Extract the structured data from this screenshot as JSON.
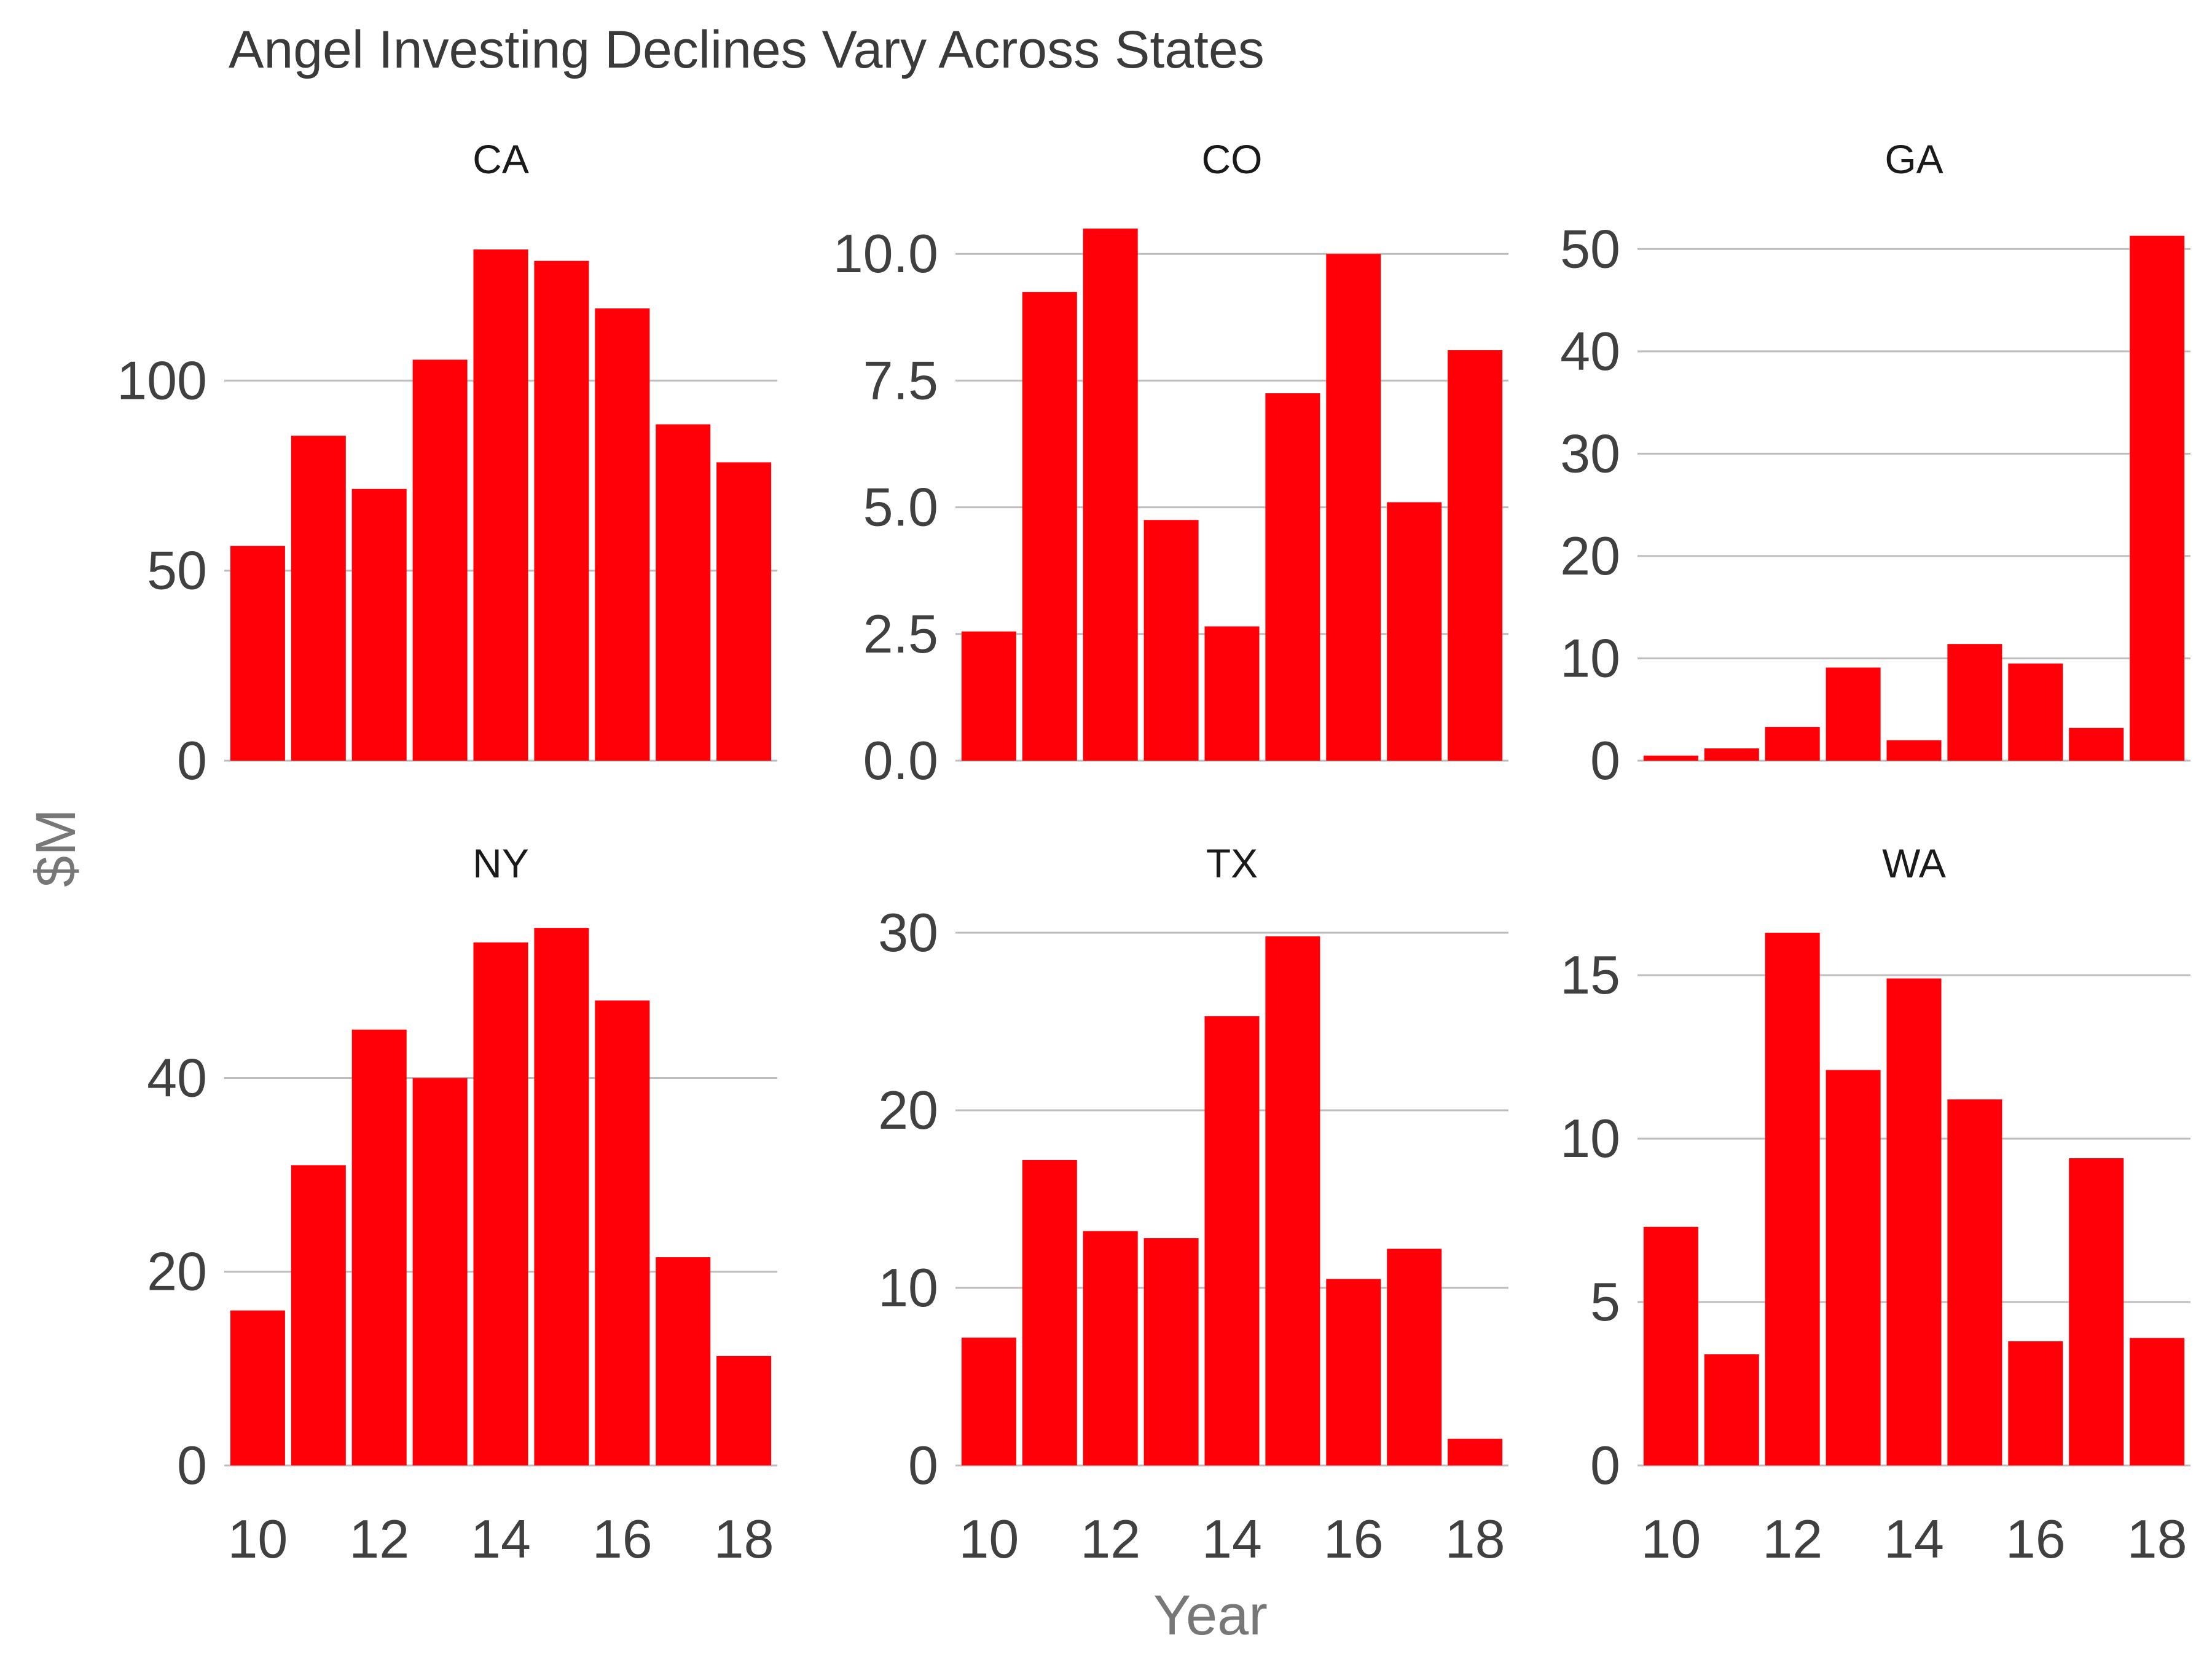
{
  "chart_data": {
    "type": "bar",
    "layout": "facet-grid",
    "title": "Angel Investing Declines Vary Across States",
    "xlabel": "Year",
    "ylabel": "$M",
    "bar_color": "#ff0008",
    "grid": true,
    "x": [
      10,
      11,
      12,
      13,
      14,
      15,
      16,
      17,
      18
    ],
    "x_ticks": [
      "10",
      "12",
      "14",
      "16",
      "18"
    ],
    "facets": [
      {
        "name": "CA",
        "ylim": [
          0,
          140
        ],
        "yticks": [
          0,
          50,
          100
        ],
        "ytick_labels": [
          "0",
          "50",
          "100"
        ],
        "values": [
          56.5,
          85.5,
          71.5,
          105.5,
          134.5,
          131.5,
          119,
          88.5,
          78.5
        ]
      },
      {
        "name": "CO",
        "ylim": [
          0,
          10.5
        ],
        "yticks": [
          0,
          2.5,
          5,
          7.5,
          10
        ],
        "ytick_labels": [
          "0.0",
          "2.5",
          "5.0",
          "7.5",
          "10.0"
        ],
        "values": [
          2.55,
          9.25,
          10.5,
          4.75,
          2.65,
          7.25,
          10.0,
          5.1,
          8.1
        ]
      },
      {
        "name": "GA",
        "ylim": [
          0,
          52
        ],
        "yticks": [
          0,
          10,
          20,
          30,
          40,
          50
        ],
        "ytick_labels": [
          "0",
          "10",
          "20",
          "30",
          "40",
          "50"
        ],
        "values": [
          0.5,
          1.2,
          3.3,
          9.1,
          2.0,
          11.4,
          9.5,
          3.2,
          51.3
        ]
      },
      {
        "name": "NY",
        "ylim": [
          0,
          55
        ],
        "yticks": [
          0,
          20,
          40
        ],
        "ytick_labels": [
          "0",
          "20",
          "40"
        ],
        "values": [
          16,
          31,
          45,
          40,
          54,
          55.5,
          48,
          21.5,
          11.3
        ]
      },
      {
        "name": "TX",
        "ylim": [
          0,
          30
        ],
        "yticks": [
          0,
          10,
          20,
          30
        ],
        "ytick_labels": [
          "0",
          "10",
          "20",
          "30"
        ],
        "values": [
          7.2,
          17.2,
          13.2,
          12.8,
          25.3,
          29.8,
          10.5,
          12.2,
          1.5
        ]
      },
      {
        "name": "WA",
        "ylim": [
          0,
          16.3
        ],
        "yticks": [
          0,
          5,
          10,
          15
        ],
        "ytick_labels": [
          "0",
          "5",
          "10",
          "15"
        ],
        "values": [
          7.3,
          3.4,
          16.3,
          12.1,
          14.9,
          11.2,
          3.8,
          9.4,
          3.9
        ]
      }
    ]
  }
}
